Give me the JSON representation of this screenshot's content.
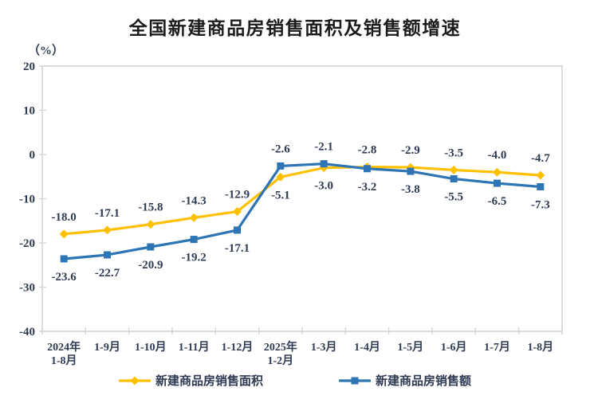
{
  "chart_data": {
    "type": "line",
    "title": "全国新建商品房销售面积及销售额增速",
    "unit_label": "（%）",
    "categories": [
      "2024年\n1-8月",
      "1-9月",
      "1-10月",
      "1-11月",
      "1-12月",
      "2025年\n1-2月",
      "1-3月",
      "1-4月",
      "1-5月",
      "1-6月",
      "1-7月",
      "1-8月"
    ],
    "series": [
      {
        "name": "新建商品房销售面积",
        "color": "#FFC000",
        "marker": "diamond",
        "values": [
          -18.0,
          -17.1,
          -15.8,
          -14.3,
          -12.9,
          -5.1,
          -3.0,
          -2.8,
          -2.9,
          -3.5,
          -4.0,
          -4.7
        ]
      },
      {
        "name": "新建商品房销售额",
        "color": "#2E75B6",
        "marker": "square",
        "values": [
          -23.6,
          -22.7,
          -20.9,
          -19.2,
          -17.1,
          -2.6,
          -2.1,
          -3.2,
          -3.8,
          -5.5,
          -6.5,
          -7.3
        ]
      }
    ],
    "ylim": [
      -40,
      20
    ],
    "yticks": [
      20,
      10,
      0,
      -10,
      -20,
      -30,
      -40
    ],
    "grid": false,
    "legend_position": "bottom",
    "colors": {
      "axis_border": "#d4d4d4",
      "tick_label": "#2f3b52",
      "data_label": "#2f3b52",
      "title": "#1c1c1c"
    }
  }
}
